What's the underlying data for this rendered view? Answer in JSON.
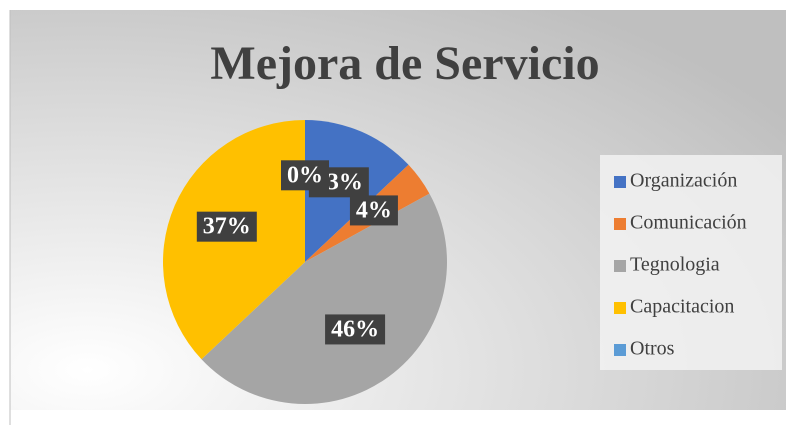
{
  "chart_data": {
    "type": "pie",
    "title": "Mejora de Servicio",
    "categories": [
      "Organización",
      "Comunicación",
      "Tegnologia",
      "Capacitacion",
      "Otros"
    ],
    "values": [
      13,
      4,
      46,
      37,
      0
    ],
    "value_labels": [
      "13%",
      "4%",
      "46%",
      "37%",
      "0%"
    ],
    "colors": [
      "#4472c4",
      "#ed7d31",
      "#a5a5a5",
      "#ffc000",
      "#5b9bd5"
    ],
    "legend": "right"
  }
}
